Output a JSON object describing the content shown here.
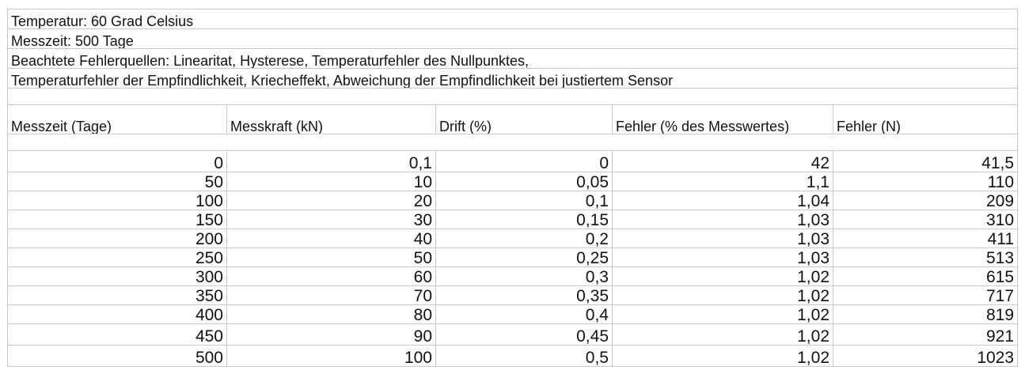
{
  "info_lines": [
    "Temperatur: 60 Grad Celsius",
    "Messzeit: 500 Tage",
    "Beachtete Fehlerquellen: Linearitat, Hysterese, Temperaturfehler des Nullpunktes,",
    "Temperaturfehler der Empfindlichkeit, Kriecheffekt, Abweichung der Empfindlichkeit bei justiertem Sensor"
  ],
  "columns": [
    "Messzeit (Tage)",
    "Messkraft (kN)",
    "Drift (%)",
    "Fehler (% des Messwertes)",
    "Fehler (N)"
  ],
  "rows": [
    [
      "0",
      "0,1",
      "0",
      "42",
      "41,5"
    ],
    [
      "50",
      "10",
      "0,05",
      "1,1",
      "110"
    ],
    [
      "100",
      "20",
      "0,1",
      "1,04",
      "209"
    ],
    [
      "150",
      "30",
      "0,15",
      "1,03",
      "310"
    ],
    [
      "200",
      "40",
      "0,2",
      "1,03",
      "411"
    ],
    [
      "250",
      "50",
      "0,25",
      "1,03",
      "513"
    ],
    [
      "300",
      "60",
      "0,3",
      "1,02",
      "615"
    ],
    [
      "350",
      "70",
      "0,35",
      "1,02",
      "717"
    ],
    [
      "400",
      "80",
      "0,4",
      "1,02",
      "819"
    ],
    [
      "450",
      "90",
      "0,45",
      "1,02",
      "921"
    ],
    [
      "500",
      "100",
      "0,5",
      "1,02",
      "1023"
    ]
  ]
}
